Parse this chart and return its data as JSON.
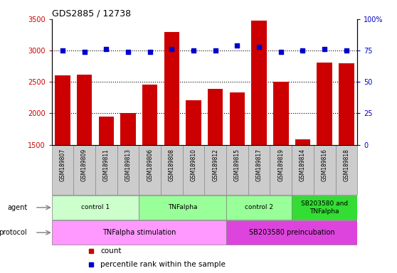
{
  "title": "GDS2885 / 12738",
  "samples": [
    "GSM189807",
    "GSM189809",
    "GSM189811",
    "GSM189813",
    "GSM189806",
    "GSM189808",
    "GSM189810",
    "GSM189812",
    "GSM189815",
    "GSM189817",
    "GSM189819",
    "GSM189814",
    "GSM189816",
    "GSM189818"
  ],
  "counts": [
    2600,
    2620,
    1950,
    2000,
    2460,
    3300,
    2210,
    2390,
    2330,
    3480,
    2500,
    1590,
    2810,
    2800
  ],
  "percentile_ranks": [
    75,
    74,
    76,
    74,
    74,
    76,
    75,
    75,
    79,
    78,
    74,
    75,
    76,
    75
  ],
  "ylim_left": [
    1500,
    3500
  ],
  "ylim_right": [
    0,
    100
  ],
  "yticks_left": [
    1500,
    2000,
    2500,
    3000,
    3500
  ],
  "yticks_right": [
    0,
    25,
    50,
    75,
    100
  ],
  "bar_color": "#cc0000",
  "dot_color": "#0000cc",
  "gridline_values": [
    2000,
    2500,
    3000
  ],
  "agent_groups": [
    {
      "label": "control 1",
      "start": 0,
      "end": 4,
      "color": "#ccffcc"
    },
    {
      "label": "TNFalpha",
      "start": 4,
      "end": 8,
      "color": "#99ff99"
    },
    {
      "label": "control 2",
      "start": 8,
      "end": 11,
      "color": "#99ff99"
    },
    {
      "label": "SB203580 and\nTNFalpha",
      "start": 11,
      "end": 14,
      "color": "#33dd33"
    }
  ],
  "protocol_groups": [
    {
      "label": "TNFalpha stimulation",
      "start": 0,
      "end": 8,
      "color": "#ff99ff"
    },
    {
      "label": "SB203580 preincubation",
      "start": 8,
      "end": 14,
      "color": "#dd44dd"
    }
  ],
  "legend_count_label": "count",
  "legend_pct_label": "percentile rank within the sample",
  "agent_label": "agent",
  "protocol_label": "protocol",
  "sample_bg_color": "#cccccc",
  "sample_border_color": "#888888"
}
